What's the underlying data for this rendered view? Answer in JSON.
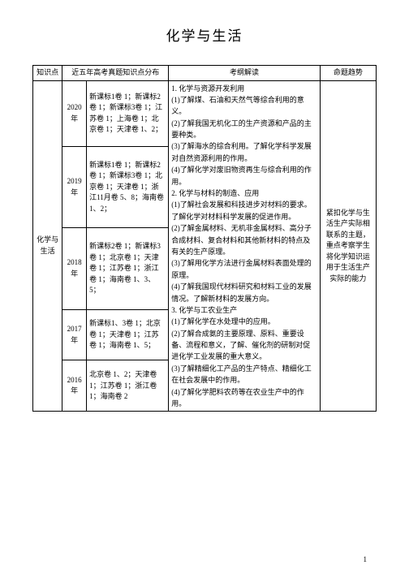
{
  "title": "化学与生活",
  "headers": {
    "topic": "知识点",
    "distribution": "近五年高考真题知识点分布",
    "interpretation": "考纲解读",
    "trend": "命题趋势"
  },
  "topic_cell": "化学与生活",
  "years": {
    "y2020": {
      "label": "2020年",
      "dist": "新课标1卷 1；新课标2卷 1；新课标3卷 1；江苏卷 1；上海卷 1；北京卷 1；天津卷 1、2；"
    },
    "y2019": {
      "label": "2019年",
      "dist": "新课标1卷 1；新课标2卷 1；新课标3卷 1；北京卷 1；天津卷 1；浙江11月卷 5、8；海南卷 1、2；"
    },
    "y2018": {
      "label": "2018年",
      "dist": "新课标2卷 1；新课标3卷 1；北京卷 1；天津卷 1；江苏卷 1；浙江卷 1；海南卷 1、3、5；"
    },
    "y2017": {
      "label": "2017年",
      "dist": "新课标1、3卷 1；北京卷 1；天津卷 1；江苏卷 1；海南卷 1、5；"
    },
    "y2016": {
      "label": "2016年",
      "dist": "北京卷 1、2；天津卷 1；江苏卷 1；浙江卷 1；海南卷 2"
    }
  },
  "interpretation": "1. 化学与资源开发利用\n(1)了解煤、石油和天然气等综合利用的意义。\n(2)了解我国无机化工的生产资源和产品的主要种类。\n(3)了解海水的综合利用。了解化学科学发展对自然资源利用的作用。\n(4)了解化学对废旧物资再生与综合利用的作用。\n2. 化学与材料的制造、应用\n(1)了解社会发展和科技进步对材料的要求。了解化学对材料科学发展的促进作用。\n(2)了解金属材料、无机非金属材料、高分子合成材料、复合材料和其他新材料的特点及有关的生产原理。\n(3)了解用化学方法进行金属材料表面处理的原理。\n(4)了解我国现代材料研究和材料工业的发展情况。了解新材料的发展方向。\n3. 化学与工农业生产\n(1)了解化学在水处理中的应用。\n(2)了解合成氨的主要原理、原料、重要设备、流程和意义，了解、催化剂的研制对促进化学工业发展的重大意义。\n(3)了解精细化工产品的生产特点、精细化工在社会发展中的作用。\n(4)了解化学肥料农药等在农业生产中的作用。",
  "trend": "紧扣化学与生活生产实际相联系的主题，重点考察学生将化学知识运用于生活生产实际的能力",
  "page_number": "1"
}
